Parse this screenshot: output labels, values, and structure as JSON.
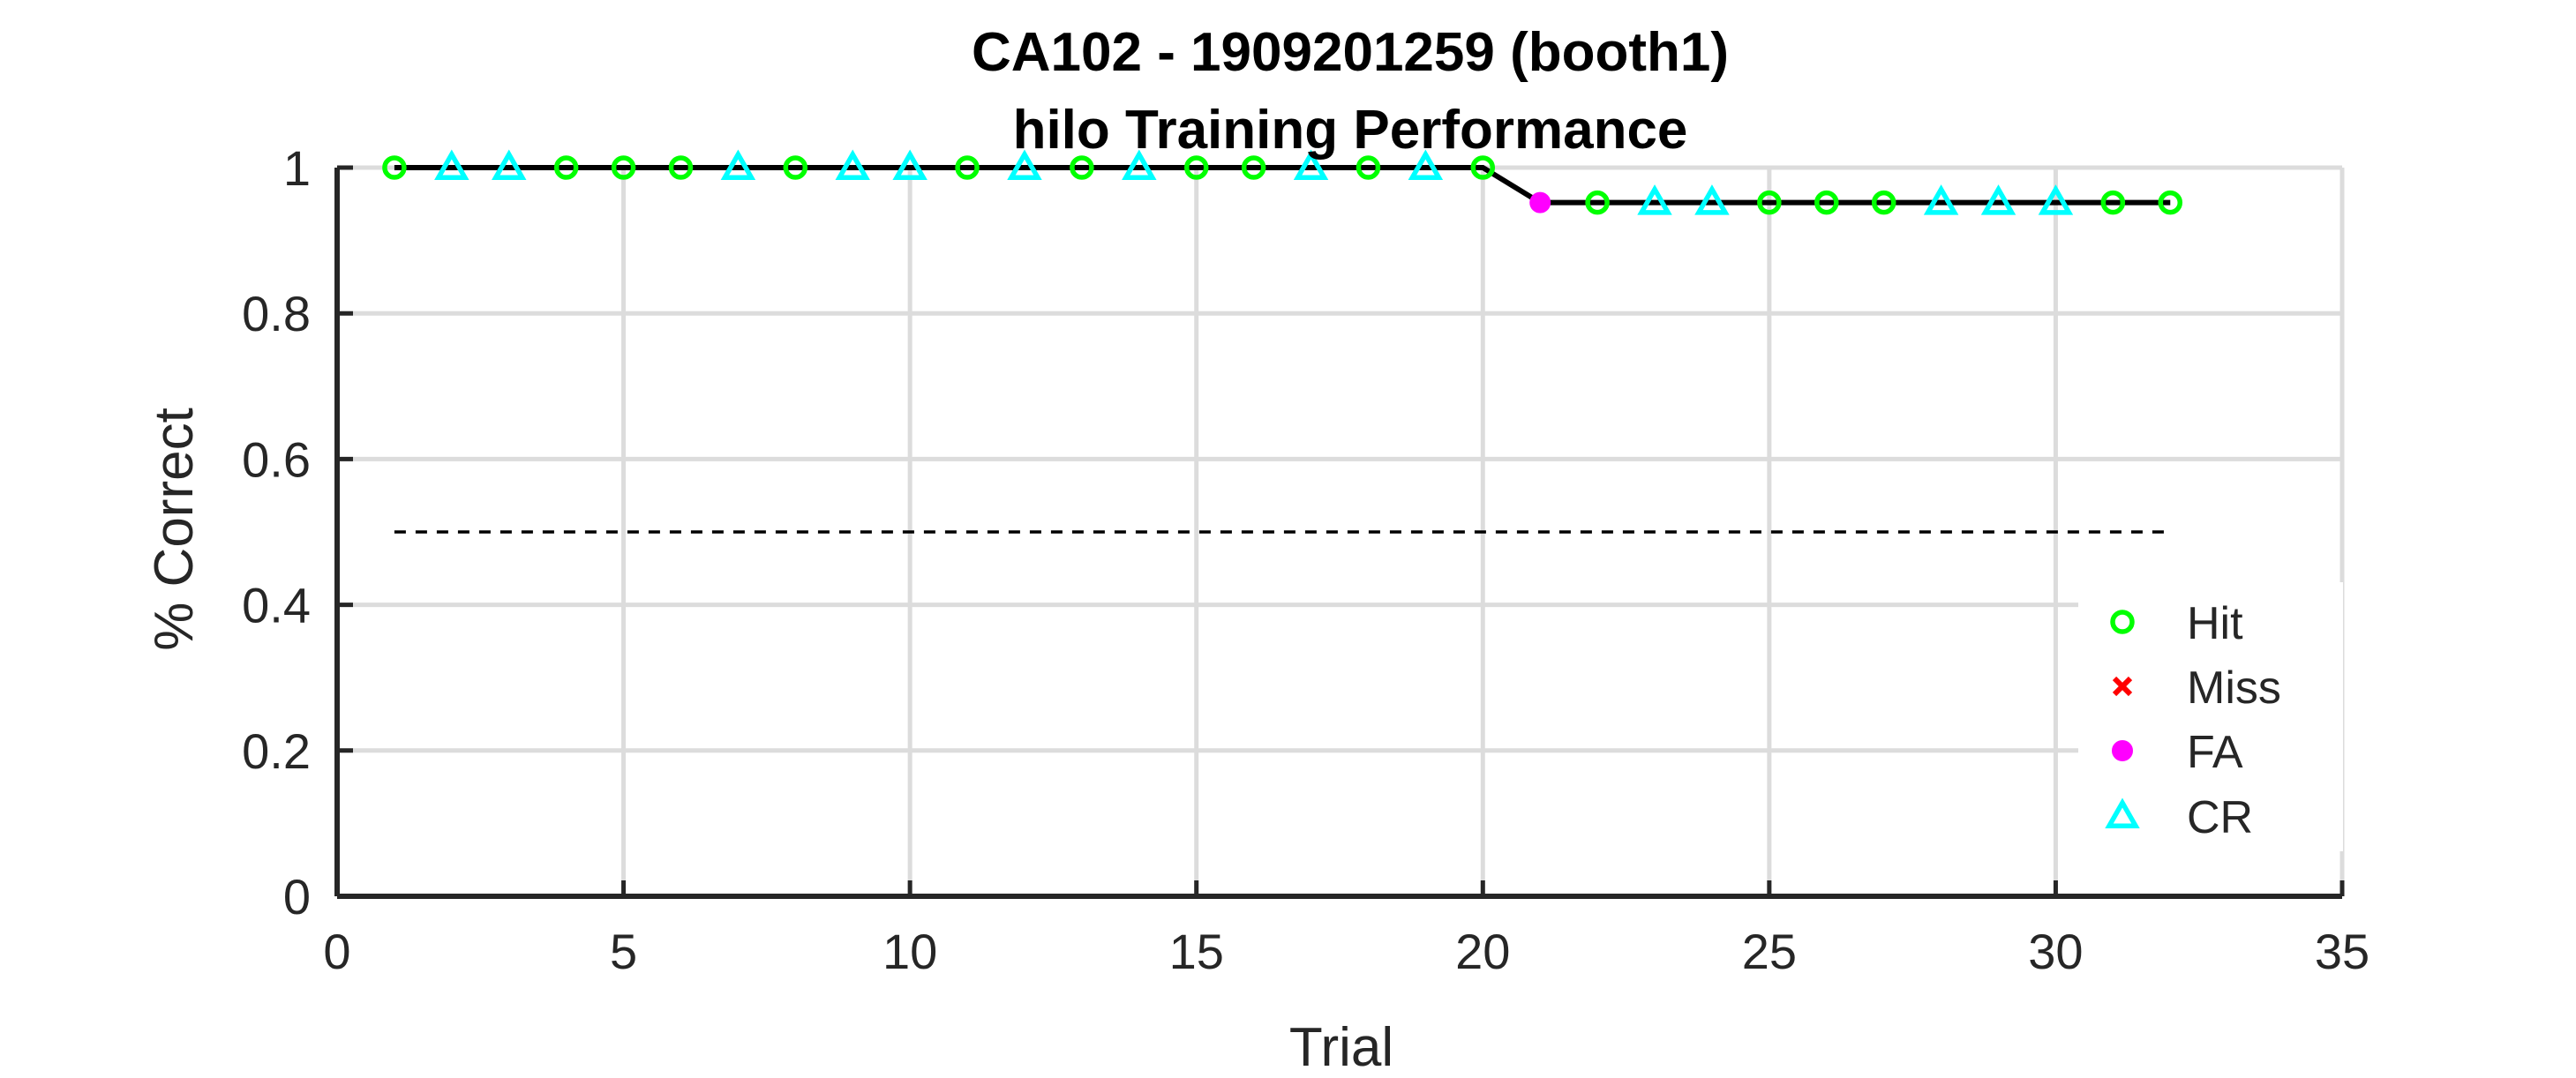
{
  "chart_data": {
    "type": "line",
    "title": [
      "CA102 - 1909201259 (booth1)",
      "hilo Training Performance"
    ],
    "xlabel": "Trial",
    "ylabel": "% Correct",
    "xlim": [
      0,
      35
    ],
    "ylim": [
      0,
      1
    ],
    "xticks": [
      0,
      5,
      10,
      15,
      20,
      25,
      30,
      35
    ],
    "yticks": [
      0,
      0.2,
      0.4,
      0.6,
      0.8,
      1
    ],
    "grid": true,
    "legend_position": "bottom-right",
    "reference_line": {
      "y": 0.5,
      "x": [
        1,
        32
      ],
      "style": "dashed",
      "color": "#000000"
    },
    "performance_line": {
      "color": "#000000",
      "x": [
        1,
        2,
        3,
        4,
        5,
        6,
        7,
        8,
        9,
        10,
        11,
        12,
        13,
        14,
        15,
        16,
        17,
        18,
        19,
        20,
        21,
        22,
        23,
        24,
        25,
        26,
        27,
        28,
        29,
        30,
        31,
        32
      ],
      "y": [
        1,
        1,
        1,
        1,
        1,
        1,
        1,
        1,
        1,
        1,
        1,
        1,
        1,
        1,
        1,
        1,
        1,
        1,
        1,
        1,
        0.952,
        0.952,
        0.952,
        0.952,
        0.952,
        0.952,
        0.952,
        0.952,
        0.952,
        0.952,
        0.952,
        0.952
      ]
    },
    "series": [
      {
        "name": "Hit",
        "marker": "circle",
        "color": "#00ff00",
        "x": [
          1,
          4,
          5,
          6,
          8,
          11,
          13,
          15,
          16,
          18,
          20,
          22,
          25,
          26,
          27,
          31,
          32
        ],
        "y": [
          1,
          1,
          1,
          1,
          1,
          1,
          1,
          1,
          1,
          1,
          1,
          0.952,
          0.952,
          0.952,
          0.952,
          0.952,
          0.952
        ]
      },
      {
        "name": "Miss",
        "marker": "x",
        "color": "#ff0000",
        "x": [],
        "y": []
      },
      {
        "name": "FA",
        "marker": "dot",
        "color": "#ff00ff",
        "x": [
          21
        ],
        "y": [
          0.952
        ]
      },
      {
        "name": "CR",
        "marker": "triangle",
        "color": "#00ffff",
        "x": [
          2,
          3,
          7,
          9,
          10,
          12,
          14,
          17,
          19,
          23,
          24,
          28,
          29,
          30
        ],
        "y": [
          1,
          1,
          1,
          1,
          1,
          1,
          1,
          1,
          1,
          0.952,
          0.952,
          0.952,
          0.952,
          0.952
        ]
      }
    ]
  }
}
